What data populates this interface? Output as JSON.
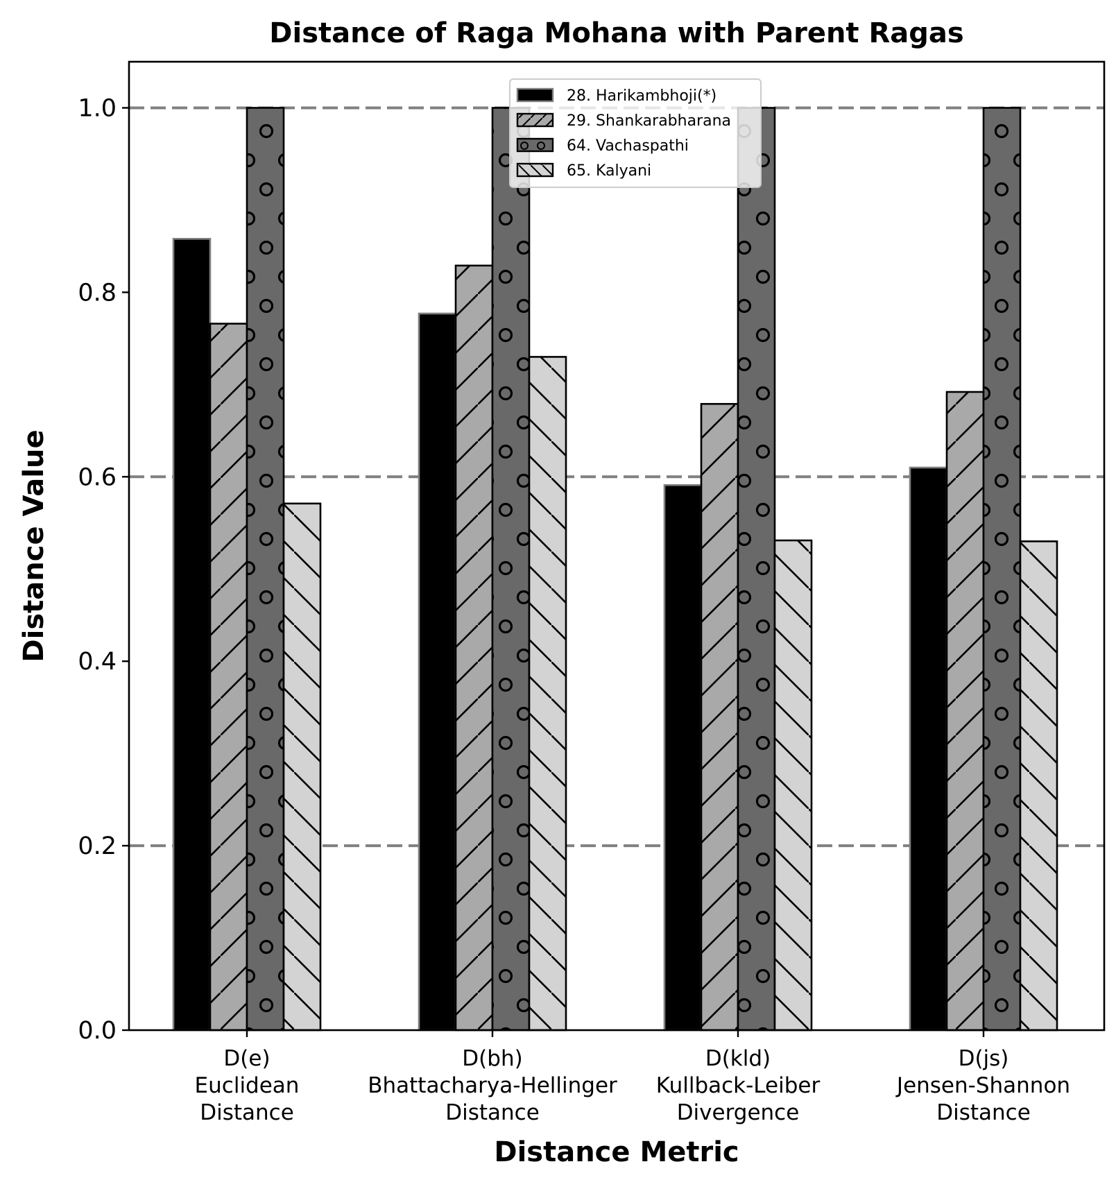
{
  "chart_data": {
    "type": "bar",
    "title": "Distance of Raga Mohana with Parent Ragas",
    "xlabel": "Distance Metric",
    "ylabel": "Distance Value",
    "ylim": [
      0,
      1.05
    ],
    "yticks": [
      0.0,
      0.2,
      0.4,
      0.6,
      0.8,
      1.0
    ],
    "ytick_labels": [
      "0.0",
      "0.2",
      "0.4",
      "0.6",
      "0.8",
      "1.0"
    ],
    "gridlines_y": [
      0.2,
      0.6,
      1.0
    ],
    "grid": "dashed horizontal",
    "legend_position": "top-center",
    "categories": [
      [
        "D(e)",
        "Euclidean",
        "Distance"
      ],
      [
        "D(bh)",
        "Bhattacharya-Hellinger",
        "Distance"
      ],
      [
        "D(kld)",
        "Kullback-Leiber",
        "Divergence"
      ],
      [
        "D(js)",
        "Jensen-Shannon",
        "Distance"
      ]
    ],
    "series": [
      {
        "name": "28. Harikambhoji(*)",
        "values": [
          0.858,
          0.777,
          0.591,
          0.61
        ],
        "color": "#000000",
        "edge": "#808080",
        "hatch": "none"
      },
      {
        "name": "29. Shankarabharana",
        "values": [
          0.766,
          0.829,
          0.679,
          0.692
        ],
        "color": "#a9a9a9",
        "edge": "#000000",
        "hatch": "diagonal-forward"
      },
      {
        "name": "64. Vachaspathi",
        "values": [
          1.0,
          1.0,
          1.0,
          1.0
        ],
        "color": "#696969",
        "edge": "#000000",
        "hatch": "circles"
      },
      {
        "name": "65. Kalyani",
        "values": [
          0.571,
          0.73,
          0.531,
          0.53
        ],
        "color": "#d3d3d3",
        "edge": "#000000",
        "hatch": "diagonal-back"
      }
    ]
  }
}
